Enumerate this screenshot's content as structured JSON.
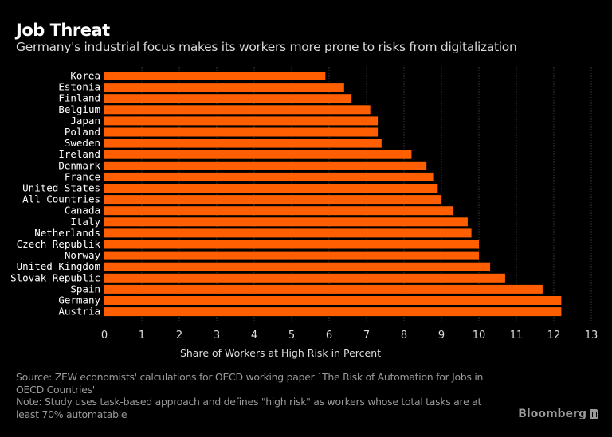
{
  "header": {
    "title": "Job Threat",
    "subtitle": "Germany's industrial focus makes its workers more prone to risks from digitalization"
  },
  "chart_data": {
    "type": "bar",
    "orientation": "horizontal",
    "title": "Job Threat",
    "subtitle": "Germany's industrial focus makes its workers more prone to risks from digitalization",
    "xlabel": "Share of Workers at High Risk in Percent",
    "ylabel": "",
    "xlim": [
      0,
      13
    ],
    "xticks": [
      0,
      1,
      2,
      3,
      4,
      5,
      6,
      7,
      8,
      9,
      10,
      11,
      12,
      13
    ],
    "grid": true,
    "bar_color": "#ff5f00",
    "categories": [
      "Korea",
      "Estonia",
      "Finland",
      "Belgium",
      "Japan",
      "Poland",
      "Sweden",
      "Ireland",
      "Denmark",
      "France",
      "United States",
      "All Countries",
      "Canada",
      "Italy",
      "Netherlands",
      "Czech Republik",
      "Norway",
      "United Kingdom",
      "Slovak Republic",
      "Spain",
      "Germany",
      "Austria"
    ],
    "values": [
      5.9,
      6.4,
      6.6,
      7.1,
      7.3,
      7.3,
      7.4,
      8.2,
      8.6,
      8.8,
      8.9,
      9.0,
      9.3,
      9.7,
      9.8,
      10.0,
      10.0,
      10.3,
      10.7,
      11.7,
      12.2,
      12.2
    ]
  },
  "footer": {
    "source": "Source: ZEW economists' calculations for OECD working paper `The Risk of Automation for Jobs in OECD Countries'",
    "note": "Note: Study uses task-based approach and defines \"high risk\" as workers whose total tasks are at least 70% automatable",
    "brand": "Bloomberg",
    "brand_icon": "bloomberg-logo-icon"
  }
}
